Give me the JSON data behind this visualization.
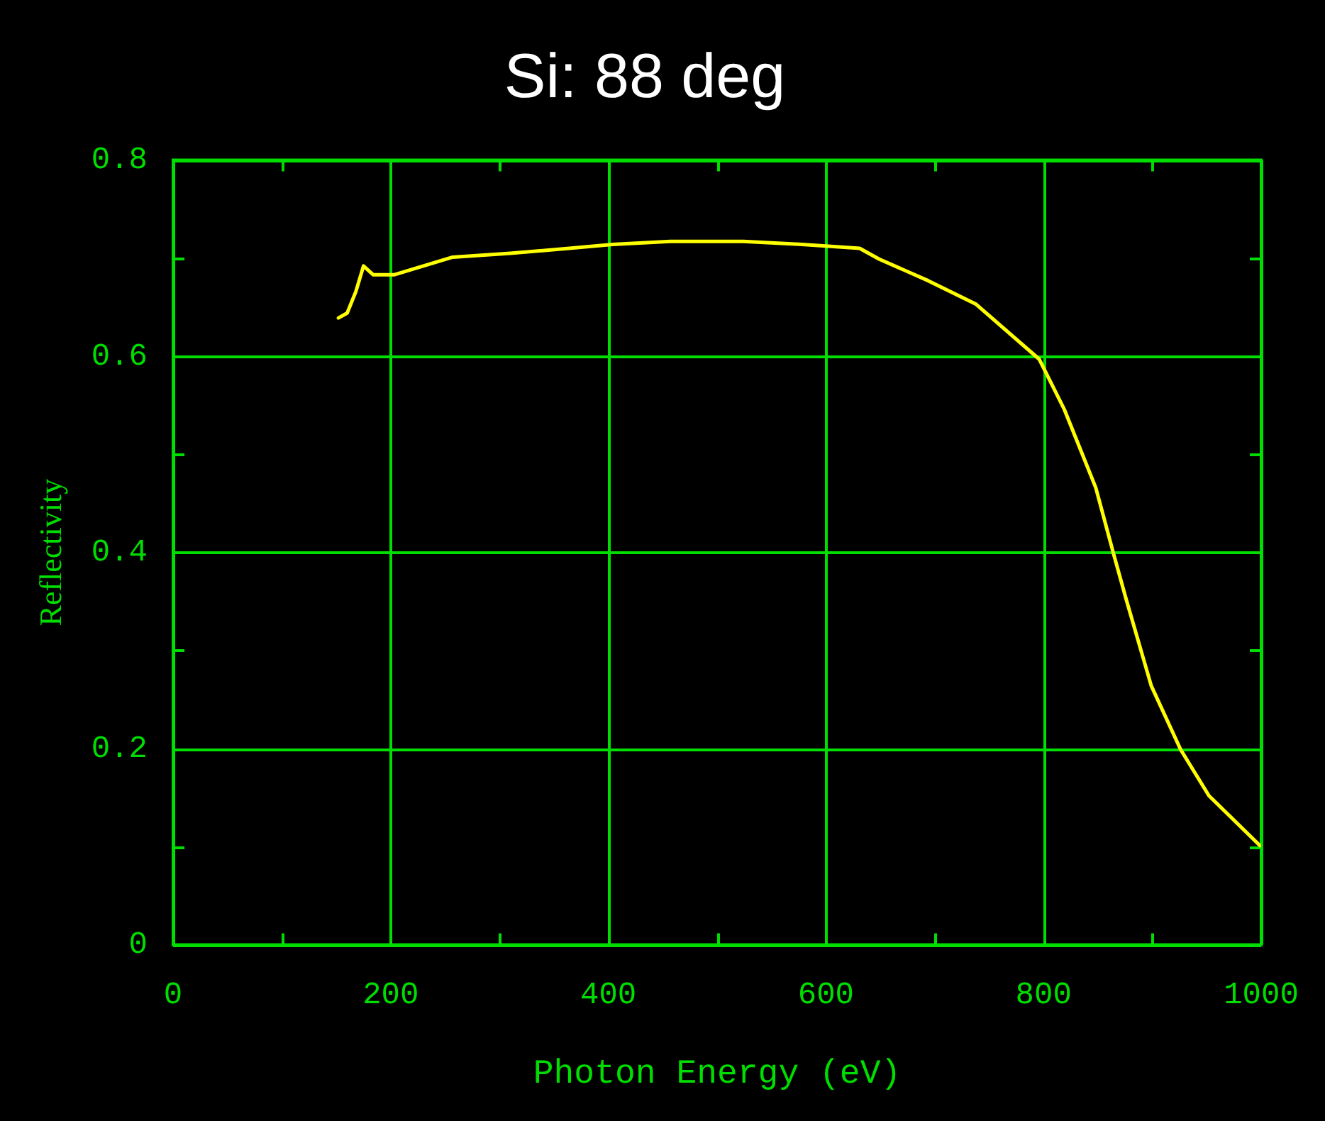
{
  "chart_data": {
    "type": "line",
    "title": "Si: 88 deg",
    "xlabel": "Photon Energy (eV)",
    "ylabel": "Reflectivity",
    "x": [
      152,
      160,
      168,
      175,
      184,
      203,
      230,
      257,
      310,
      364,
      404,
      457,
      524,
      578,
      631,
      649,
      694,
      738,
      796,
      819,
      848,
      864,
      876,
      899,
      926,
      952,
      999
    ],
    "series": [
      {
        "color": "#ffff00",
        "values": [
          0.639,
          0.644,
          0.666,
          0.692,
          0.683,
          0.683,
          0.692,
          0.701,
          0.705,
          0.71,
          0.714,
          0.717,
          0.717,
          0.714,
          0.71,
          0.699,
          0.677,
          0.653,
          0.597,
          0.546,
          0.466,
          0.4,
          0.352,
          0.264,
          0.199,
          0.152,
          0.101
        ]
      }
    ],
    "xlim": [
      0,
      1000
    ],
    "xticks": [
      0,
      {
        "value": 100,
        "label": null
      },
      200,
      {
        "value": 300,
        "label": null
      },
      400,
      {
        "value": 500,
        "label": null
      },
      600,
      {
        "value": 700,
        "label": null
      },
      800,
      {
        "value": 900,
        "label": null
      },
      1000
    ],
    "ylim": [
      0,
      0.8
    ],
    "yticks": [
      0,
      {
        "value": 0.1,
        "label": null
      },
      0.2,
      {
        "value": 0.3,
        "label": null
      },
      0.4,
      {
        "value": 0.5,
        "label": null
      },
      0.6,
      {
        "value": 0.7,
        "label": null
      },
      0.8
    ],
    "grid": true,
    "marker": "none",
    "line_style": "solid"
  }
}
